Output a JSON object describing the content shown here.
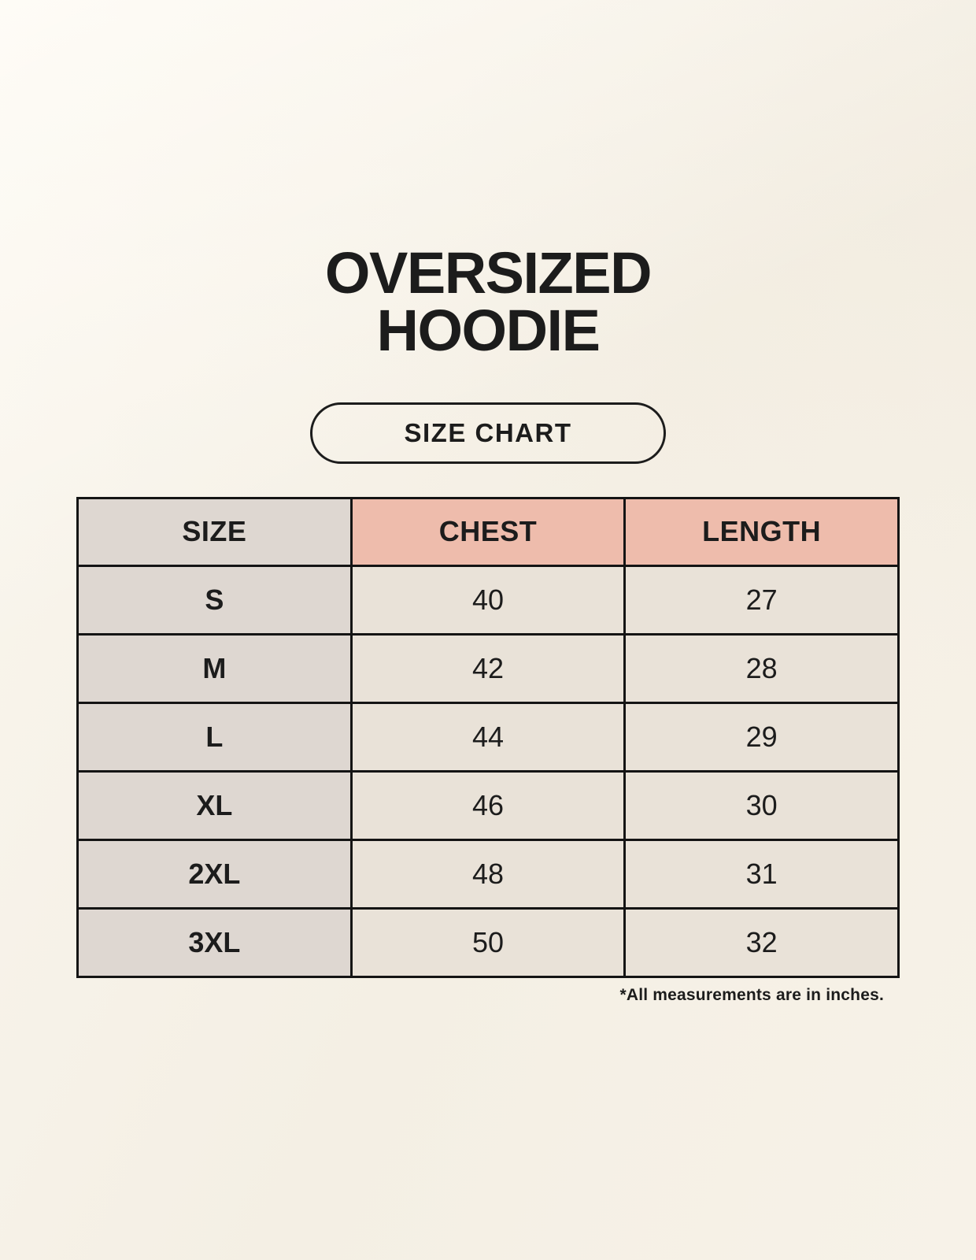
{
  "colors": {
    "page_bg": "#f8f3ea",
    "ink": "#1c1c1c",
    "table_border": "#141414",
    "col_size_bg": "#ded7d1",
    "header_accent_bg": "#eebcac",
    "cell_bg": "#e9e2d8"
  },
  "header": {
    "title_line1": "OVERSIZED",
    "title_line2": "HOODIE",
    "badge_label": "SIZE CHART"
  },
  "table": {
    "headers": {
      "size": "SIZE",
      "chest": "CHEST",
      "length": "LENGTH"
    },
    "rows": [
      {
        "size": "S",
        "chest": "40",
        "length": "27"
      },
      {
        "size": "M",
        "chest": "42",
        "length": "28"
      },
      {
        "size": "L",
        "chest": "44",
        "length": "29"
      },
      {
        "size": "XL",
        "chest": "46",
        "length": "30"
      },
      {
        "size": "2XL",
        "chest": "48",
        "length": "31"
      },
      {
        "size": "3XL",
        "chest": "50",
        "length": "32"
      }
    ]
  },
  "footnote": "*All measurements are in inches.",
  "chart_data": {
    "type": "table",
    "title": "OVERSIZED HOODIE",
    "subtitle": "SIZE CHART",
    "columns": [
      "SIZE",
      "CHEST",
      "LENGTH"
    ],
    "rows": [
      [
        "S",
        40,
        27
      ],
      [
        "M",
        42,
        28
      ],
      [
        "L",
        44,
        29
      ],
      [
        "XL",
        46,
        30
      ],
      [
        "2XL",
        48,
        31
      ],
      [
        "3XL",
        50,
        32
      ]
    ],
    "units": "inches",
    "note": "*All measurements are in inches.",
    "layout": {
      "header_accent_color": "#eebcac",
      "size_column_color": "#ded7d1",
      "cell_color": "#e9e2d8",
      "grid": "on"
    }
  }
}
